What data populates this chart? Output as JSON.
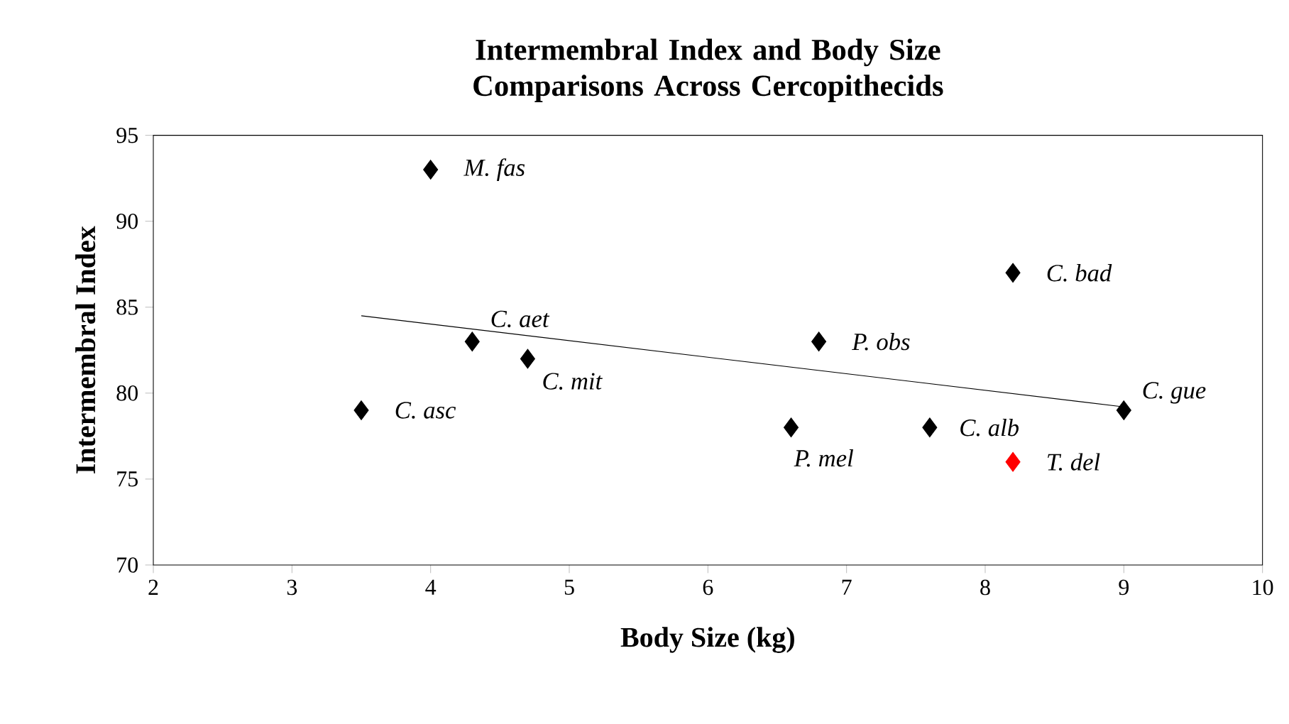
{
  "chart_data": {
    "type": "scatter",
    "title": "Intermembral Index and Body Size Comparisons Across Cercopithecids",
    "xlabel": "Body Size (kg)",
    "ylabel": "Intermembral Index",
    "xlim": [
      2,
      10
    ],
    "ylim": [
      70,
      95
    ],
    "xticks": [
      2,
      3,
      4,
      5,
      6,
      7,
      8,
      9,
      10
    ],
    "yticks": [
      70,
      75,
      80,
      85,
      90,
      95
    ],
    "marker": "diamond",
    "series": [
      {
        "color": "#000000",
        "x": [
          4,
          8.2,
          4.3,
          6.8,
          4.7,
          9,
          3.5,
          6.6,
          7.6
        ],
        "values": [
          93,
          87,
          83,
          83,
          82,
          79,
          79,
          78,
          78
        ]
      },
      {
        "color": "#ff0000",
        "x": [
          8.2
        ],
        "values": [
          76
        ]
      },
      {
        "type": "line",
        "marker": "none",
        "color": "#000000",
        "x": [
          3.5,
          9
        ],
        "values": [
          84.5,
          79.2
        ]
      }
    ],
    "annotations": [
      {
        "text": "M. fas",
        "x": 4,
        "y": 93
      },
      {
        "text": "C. bad",
        "x": 8.2,
        "y": 87
      },
      {
        "text": "C. aet",
        "x": 4.3,
        "y": 83
      },
      {
        "text": "P. obs",
        "x": 6.8,
        "y": 83
      },
      {
        "text": "C. mit",
        "x": 4.7,
        "y": 82
      },
      {
        "text": "C. gue",
        "x": 9,
        "y": 79
      },
      {
        "text": "C. asc",
        "x": 3.5,
        "y": 79
      },
      {
        "text": "P. mel",
        "x": 6.6,
        "y": 78
      },
      {
        "text": "C. alb",
        "x": 7.6,
        "y": 78
      },
      {
        "text": "T. del",
        "x": 8.2,
        "y": 76
      }
    ]
  }
}
